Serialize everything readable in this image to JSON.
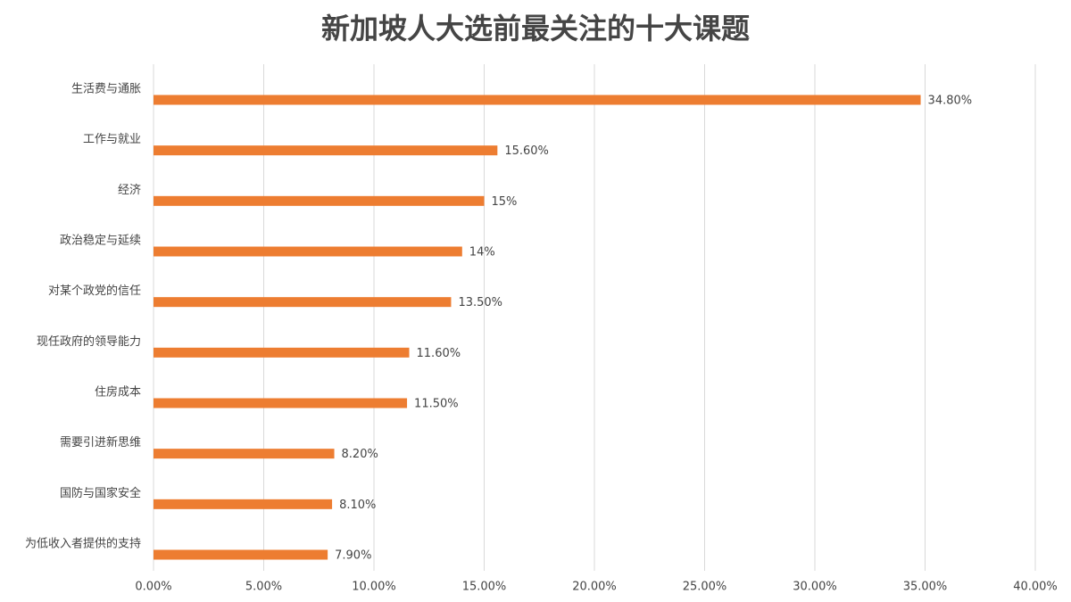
{
  "chart_data": {
    "type": "bar",
    "orientation": "horizontal",
    "title": "新加坡人大选前最关注的十大课题",
    "categories": [
      "生活费与通胀",
      "工作与就业",
      "经济",
      "政治稳定与延续",
      "对某个政党的信任",
      "现任政府的领导能力",
      "住房成本",
      "需要引进新思维",
      "国防与国家安全",
      "为低收入者提供的支持"
    ],
    "values": [
      34.8,
      15.6,
      15,
      14,
      13.5,
      11.6,
      11.5,
      8.2,
      8.1,
      7.9
    ],
    "value_labels": [
      "34.80%",
      "15.60%",
      "15%",
      "14%",
      "13.50%",
      "11.60%",
      "11.50%",
      "8.20%",
      "8.10%",
      "7.90%"
    ],
    "color": "#ed7d31",
    "xlim": [
      0,
      40
    ],
    "xticks": [
      {
        "value": 0,
        "label": "0.00%"
      },
      {
        "value": 5,
        "label": "5.00%"
      },
      {
        "value": 10,
        "label": "10.00%"
      },
      {
        "value": 15,
        "label": "15.00%"
      },
      {
        "value": 20,
        "label": "20.00%"
      },
      {
        "value": 25,
        "label": "25.00%"
      },
      {
        "value": 30,
        "label": "30.00%"
      },
      {
        "value": 35,
        "label": "35.00%"
      },
      {
        "value": 40,
        "label": "40.00%"
      }
    ],
    "grid": true
  }
}
